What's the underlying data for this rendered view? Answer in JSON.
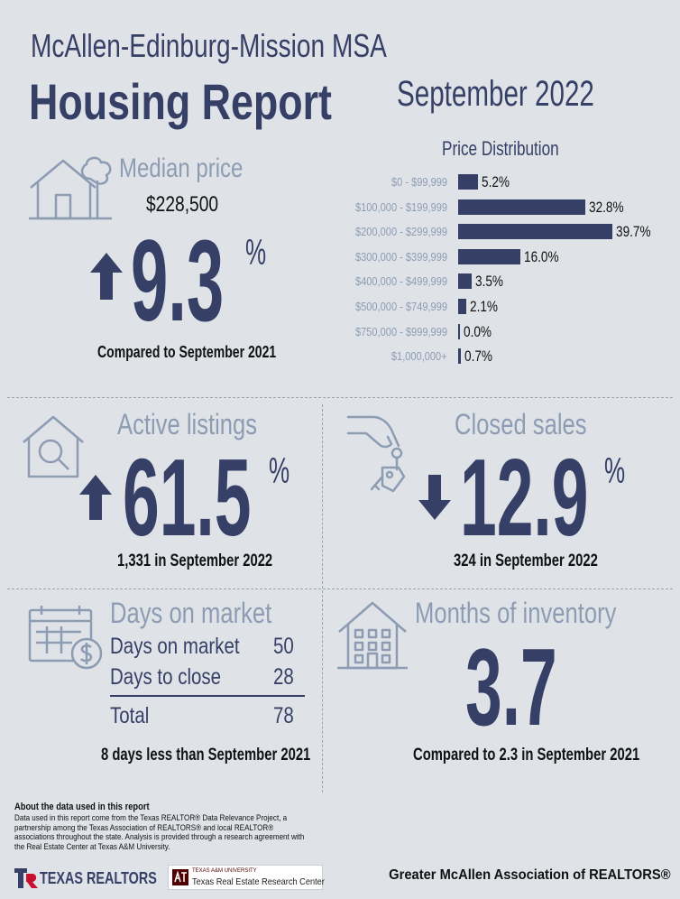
{
  "header": {
    "msa": "McAllen-Edinburg-Mission MSA",
    "title": "Housing Report",
    "date": "September 2022"
  },
  "median_price": {
    "heading": "Median price",
    "value": "$228,500",
    "change": "9.3",
    "unit": "%",
    "direction": "up",
    "caption": "Compared to September 2021"
  },
  "price_distribution": {
    "title": "Price Distribution",
    "rows": [
      {
        "range": "$0 - $99,999",
        "label": "5.2%",
        "value": 5.2
      },
      {
        "range": "$100,000 - $199,999",
        "label": "32.8%",
        "value": 32.8
      },
      {
        "range": "$200,000 - $299,999",
        "label": "39.7%",
        "value": 39.7
      },
      {
        "range": "$300,000 - $399,999",
        "label": "16.0%",
        "value": 16.0
      },
      {
        "range": "$400,000 - $499,999",
        "label": "3.5%",
        "value": 3.5
      },
      {
        "range": "$500,000 - $749,999",
        "label": "2.1%",
        "value": 2.1
      },
      {
        "range": "$750,000 - $999,999",
        "label": "0.0%",
        "value": 0.0
      },
      {
        "range": "$1,000,000+",
        "label": "0.7%",
        "value": 0.7
      }
    ]
  },
  "active_listings": {
    "heading": "Active listings",
    "change": "61.5",
    "unit": "%",
    "direction": "up",
    "caption": "1,331 in September 2022"
  },
  "closed_sales": {
    "heading": "Closed sales",
    "change": "12.9",
    "unit": "%",
    "direction": "down",
    "caption": "324 in September 2022"
  },
  "days_on_market": {
    "heading": "Days on market",
    "rows": [
      {
        "label": "Days on market",
        "value": "50"
      },
      {
        "label": "Days to close",
        "value": "28"
      }
    ],
    "total_label": "Total",
    "total_value": "78",
    "caption": "8 days less than September 2021"
  },
  "months_of_inventory": {
    "heading": "Months of inventory",
    "value": "3.7",
    "caption": "Compared to 2.3 in September 2021"
  },
  "about": {
    "title": "About the data used in this report",
    "body": "Data used in this report come from the Texas REALTOR® Data Relevance Project, a partnership among the Texas Association of REALTORS® and local REALTOR® associations throughout the state. Analysis is provided through a research agreement with the Real Estate Center at Texas A&M University."
  },
  "footer": {
    "texas_realtors": "TEXAS REALTORS",
    "tamu_small": "TEXAS A&M UNIVERSITY",
    "tamu_center": "Texas Real Estate Research Center",
    "association": "Greater McAllen Association of REALTORS®"
  },
  "colors": {
    "background": "#dfe3e8",
    "navy": "#363f66",
    "steel": "#8d9cb3",
    "logo_red": "#c8102e",
    "tamu_maroon": "#500000"
  }
}
